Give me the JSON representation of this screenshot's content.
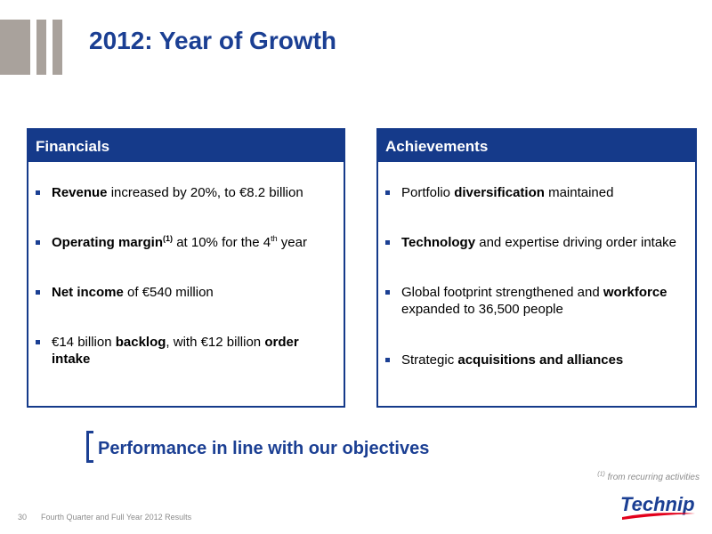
{
  "title": "2012: Year of Growth",
  "financials": {
    "header": "Financials",
    "items": [
      {
        "b1": "Revenue",
        "t1": " increased by 20%, to €8.2 billion"
      },
      {
        "b1": "Operating margin",
        "sup1": "(1)",
        "t1": " at 10% for the 4",
        "sup2": "th",
        "t2": " year"
      },
      {
        "b1": "Net income",
        "t1": " of €540 million"
      },
      {
        "t0": "€14 billion ",
        "b1": "backlog",
        "t1": ", with €12 billion ",
        "b2": "order intake"
      }
    ]
  },
  "achievements": {
    "header": "Achievements",
    "items": [
      {
        "t0": "Portfolio ",
        "b1": "diversification",
        "t1": " maintained"
      },
      {
        "b1": "Technology",
        "t1": " and expertise driving order intake"
      },
      {
        "t0": "Global footprint strengthened and ",
        "b1": "workforce",
        "t1": " expanded to 36,500 people"
      },
      {
        "t0": "Strategic ",
        "b1": "acquisitions and alliances"
      }
    ]
  },
  "conclusion": "Performance in line with our objectives",
  "footnote": {
    "marker": "(1)",
    "text": " from recurring activities"
  },
  "logo": {
    "text": "Technip"
  },
  "footer": {
    "page_number": "30",
    "text": "Fourth Quarter and Full Year 2012 Results"
  },
  "colors": {
    "brand_blue": "#1b3f93",
    "header_blue": "#153a8a",
    "deco_gray": "#a9a29c",
    "logo_red": "#e3001b"
  }
}
